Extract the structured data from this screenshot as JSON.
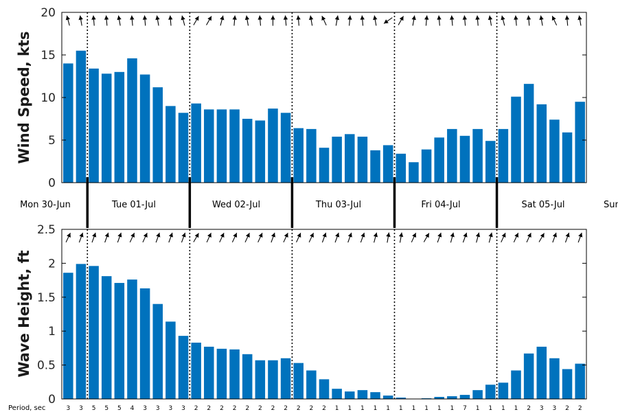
{
  "chart_data": [
    {
      "type": "bar",
      "ylabel": "Wind Speed, kts",
      "ylim": [
        0,
        20
      ],
      "yticks": [
        0,
        5,
        10,
        15,
        20
      ],
      "values": [
        14.0,
        15.5,
        13.4,
        12.8,
        13.0,
        14.6,
        12.7,
        11.2,
        9.0,
        8.2,
        9.3,
        8.6,
        8.6,
        8.6,
        7.5,
        7.3,
        8.7,
        8.2,
        6.4,
        6.3,
        4.1,
        5.4,
        5.7,
        5.4,
        3.8,
        4.4,
        3.4,
        2.4,
        3.9,
        5.3,
        6.3,
        5.5,
        6.3,
        4.9,
        6.3,
        10.1,
        11.6,
        9.2,
        7.4,
        5.9,
        9.5
      ],
      "direction_deg": [
        105,
        100,
        95,
        95,
        100,
        95,
        95,
        100,
        95,
        105,
        60,
        60,
        75,
        85,
        100,
        95,
        90,
        95,
        95,
        100,
        115,
        80,
        85,
        95,
        100,
        215,
        60,
        80,
        85,
        95,
        95,
        95,
        95,
        100,
        105,
        95,
        95,
        100,
        115,
        95,
        100
      ]
    },
    {
      "type": "bar",
      "ylabel": "Wave Height, ft",
      "ylim": [
        0,
        2.5
      ],
      "yticks": [
        "0",
        "0.5",
        "1",
        "1.5",
        "2",
        "2.5"
      ],
      "values": [
        1.86,
        1.99,
        1.96,
        1.81,
        1.71,
        1.76,
        1.63,
        1.4,
        1.14,
        0.93,
        0.83,
        0.77,
        0.74,
        0.73,
        0.66,
        0.57,
        0.57,
        0.6,
        0.53,
        0.42,
        0.29,
        0.15,
        0.11,
        0.13,
        0.1,
        0.05,
        0.02,
        0.005,
        0.01,
        0.03,
        0.04,
        0.06,
        0.13,
        0.21,
        0.24,
        0.42,
        0.67,
        0.77,
        0.6,
        0.44,
        0.52
      ],
      "direction_deg": [
        65,
        70,
        70,
        70,
        70,
        65,
        65,
        70,
        70,
        70,
        60,
        65,
        65,
        65,
        65,
        65,
        70,
        65,
        65,
        65,
        70,
        70,
        70,
        70,
        75,
        80,
        80,
        65,
        60,
        70,
        75,
        70,
        75,
        75,
        65,
        65,
        65,
        60,
        70,
        70,
        70
      ]
    }
  ],
  "days": {
    "labels": [
      "Mon 30-Jun",
      "Tue 01-Jul",
      "Wed 02-Jul",
      "Thu 03-Jul",
      "Fri 04-Jul",
      "Sat 05-Jul",
      "Sun"
    ],
    "boundary_index": [
      1.5,
      9.5,
      17.5,
      25.5,
      33.5
    ]
  },
  "period": {
    "title": "Period, sec",
    "values": [
      "3",
      "3",
      "5",
      "5",
      "5",
      "4",
      "3",
      "3",
      "3",
      "3",
      "2",
      "2",
      "2",
      "2",
      "2",
      "2",
      "2",
      "2",
      "2",
      "2",
      "2",
      "1",
      "1",
      "1",
      "1",
      "1",
      "1",
      "1",
      "1",
      "1",
      "1",
      "7",
      "1",
      "1",
      "1",
      "1",
      "2",
      "3",
      "3",
      "2",
      "2"
    ]
  },
  "colors": {
    "bar": "#0072BD",
    "frame": "#000000"
  }
}
